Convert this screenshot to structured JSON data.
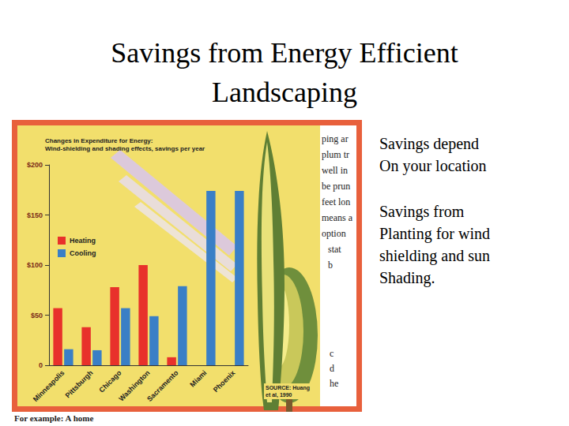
{
  "title": "Savings from Energy Efficient Landscaping",
  "bullets": [
    [
      "Savings depend",
      "On your location"
    ],
    [
      "Savings from",
      "Planting for wind",
      "shielding and sun",
      "Shading."
    ]
  ],
  "column_fragments": [
    "ping ar",
    "plum tr",
    "well in",
    "be prun",
    "feet lon",
    "means a",
    "option",
    "stat",
    "b"
  ],
  "column_fragments_lower": [
    "c",
    "d",
    "he"
  ],
  "footer_fragment": "For example: A home",
  "chart_data": {
    "type": "bar",
    "title": "Changes in Expenditure for Energy:",
    "subtitle": "Wind-shielding and shading effects, savings per year",
    "annotation": "SOURCE: Huang et al, 1990",
    "categories": [
      "Minneapolis",
      "Pittsburgh",
      "Chicago",
      "Washington",
      "Sacramento",
      "Miami",
      "Phoenix"
    ],
    "series": [
      {
        "name": "Heating",
        "color": "#e8312b",
        "values": [
          57,
          38,
          78,
          100,
          8,
          0,
          0
        ]
      },
      {
        "name": "Cooling",
        "color": "#3a7fc6",
        "values": [
          16,
          15,
          57,
          49,
          79,
          174,
          174
        ]
      }
    ],
    "ylim": [
      0,
      200
    ],
    "yticks": [
      0,
      {
        "value": 50,
        "label": "$50"
      },
      {
        "value": 100,
        "label": "$100"
      },
      {
        "value": 150,
        "label": "$150"
      },
      {
        "value": 200,
        "label": "$200"
      }
    ],
    "grid": false,
    "legend": "left"
  }
}
